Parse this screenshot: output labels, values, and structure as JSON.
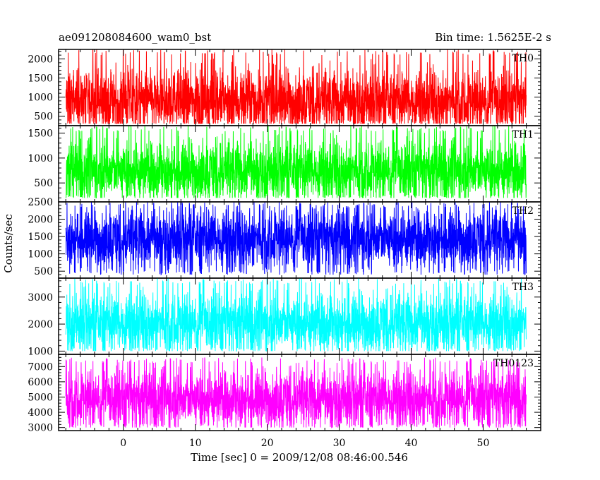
{
  "header": {
    "title": "ae091208084600_wam0_bst",
    "bin_time": "Bin time: 1.5625E-2 s"
  },
  "chart_data": {
    "type": "line",
    "title": "ae091208084600_wam0_bst",
    "subtitle": "Bin time: 1.5625E-2 s",
    "xlabel": "Time [sec] 0 = 2009/12/08 08:46:00.546",
    "ylabel": "Counts/sec",
    "xlim": [
      -9,
      58
    ],
    "x_ticks": [
      0,
      10,
      20,
      30,
      40,
      50
    ],
    "x_range_data": [
      -8,
      56
    ],
    "bin_time_s": 0.015625,
    "grid": false,
    "legend": "none",
    "panels": [
      {
        "name": "TH0",
        "color": "#ff0000",
        "ylim": [
          250,
          2250
        ],
        "ticks": [
          500,
          1000,
          1500,
          2000
        ],
        "mean": 900,
        "min": 300,
        "max": 2250
      },
      {
        "name": "TH1",
        "color": "#00ff00",
        "ylim": [
          120,
          1650
        ],
        "ticks": [
          500,
          1000,
          1500
        ],
        "mean": 750,
        "min": 200,
        "max": 1650
      },
      {
        "name": "TH2",
        "color": "#0000ff",
        "ylim": [
          300,
          2500
        ],
        "ticks": [
          500,
          1000,
          1500,
          2000,
          2500
        ],
        "mean": 1450,
        "min": 400,
        "max": 2500
      },
      {
        "name": "TH3",
        "color": "#00ffff",
        "ylim": [
          880,
          3700
        ],
        "ticks": [
          1000,
          2000,
          3000
        ],
        "mean": 2050,
        "min": 1000,
        "max": 3700
      },
      {
        "name": "TH0123",
        "color": "#ff00ff",
        "ylim": [
          2800,
          7800
        ],
        "ticks": [
          3000,
          4000,
          5000,
          6000,
          7000
        ],
        "mean": 4900,
        "min": 3000,
        "max": 7600
      }
    ]
  }
}
